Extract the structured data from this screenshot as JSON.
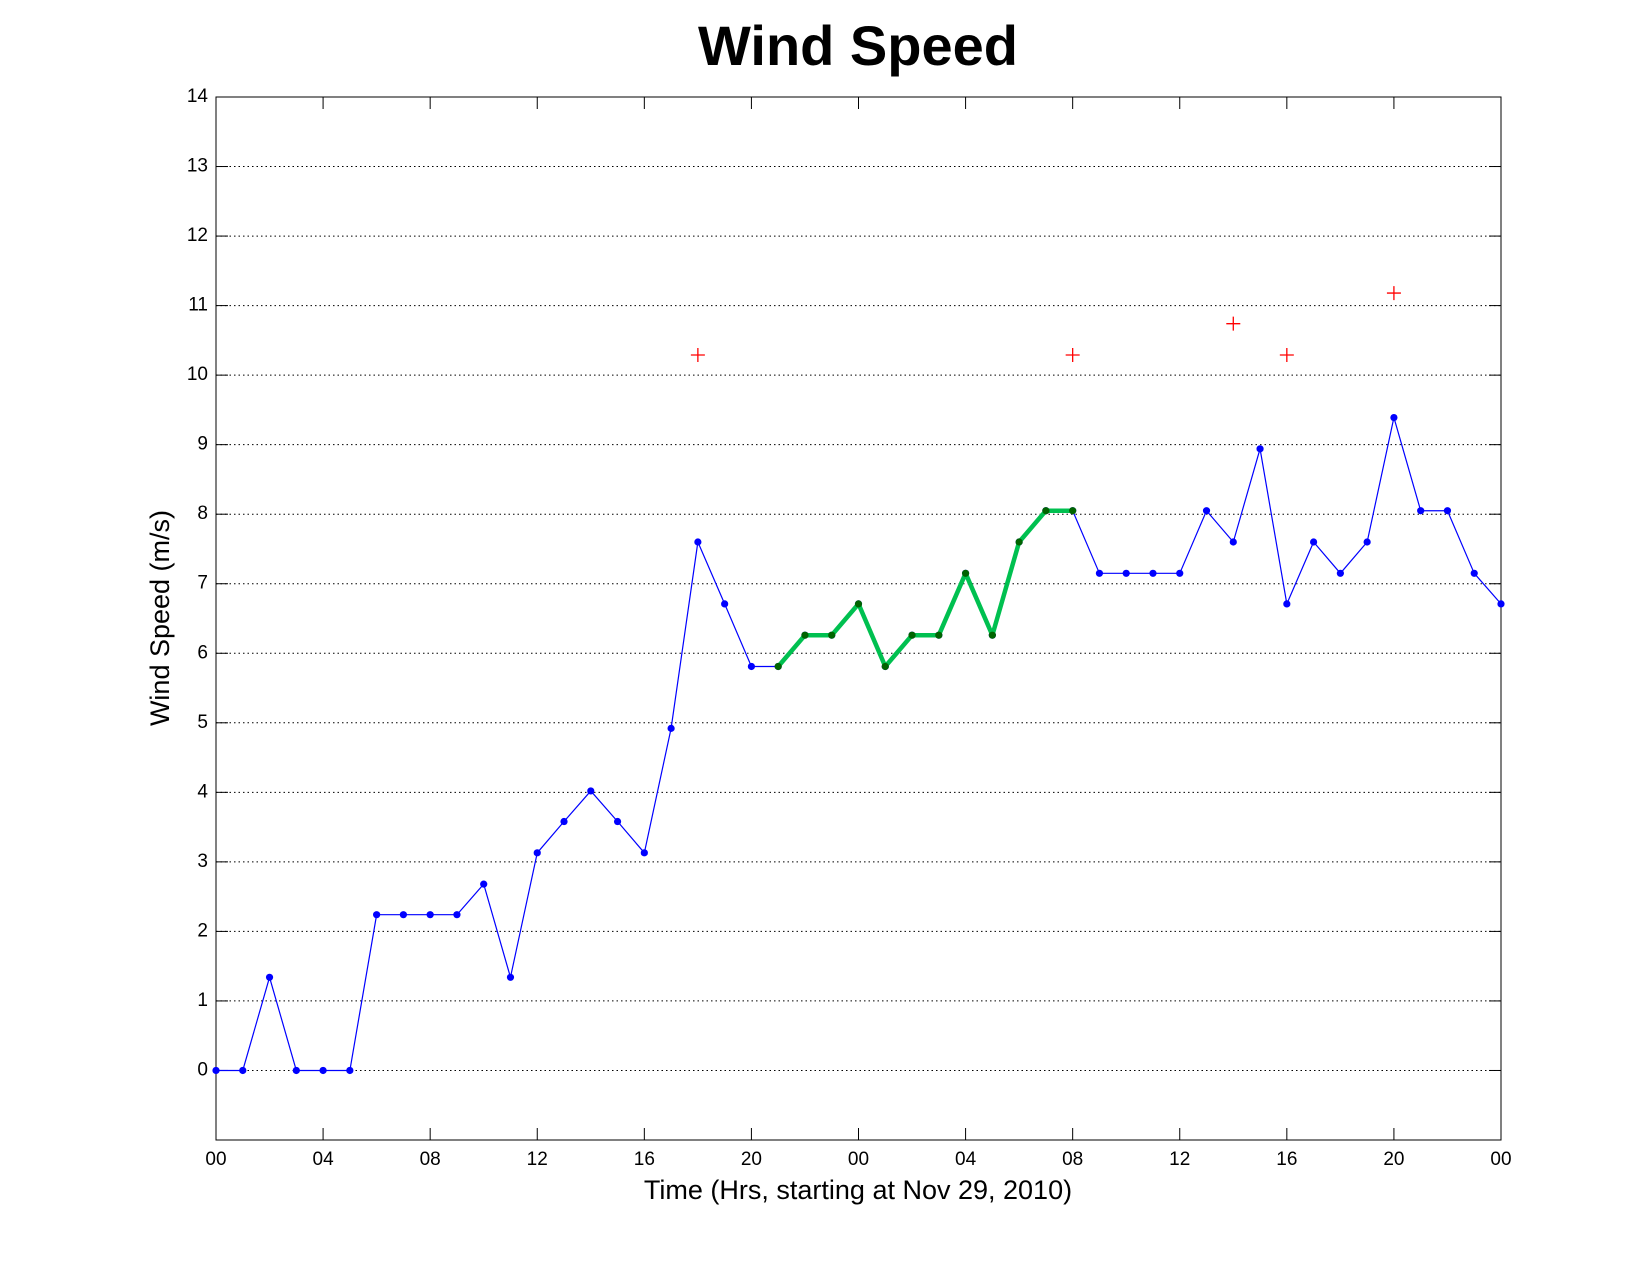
{
  "chart_data": {
    "type": "line",
    "title": "Wind Speed",
    "xlabel": "Time (Hrs, starting at Nov 29, 2010)",
    "ylabel": "Wind Speed (m/s)",
    "xlim": [
      0,
      48
    ],
    "ylim": [
      -1,
      14
    ],
    "xticks": [
      {
        "value": 0,
        "label": "00"
      },
      {
        "value": 4,
        "label": "04"
      },
      {
        "value": 8,
        "label": "08"
      },
      {
        "value": 12,
        "label": "12"
      },
      {
        "value": 16,
        "label": "16"
      },
      {
        "value": 20,
        "label": "20"
      },
      {
        "value": 24,
        "label": "00"
      },
      {
        "value": 28,
        "label": "04"
      },
      {
        "value": 32,
        "label": "08"
      },
      {
        "value": 36,
        "label": "12"
      },
      {
        "value": 40,
        "label": "16"
      },
      {
        "value": 44,
        "label": "20"
      },
      {
        "value": 48,
        "label": "00"
      }
    ],
    "yticks": [
      0,
      1,
      2,
      3,
      4,
      5,
      6,
      7,
      8,
      9,
      10,
      11,
      12,
      13,
      14
    ],
    "grid": "y",
    "series": [
      {
        "color": "#0000ff",
        "marker": "dot",
        "marker_color": "#0000ff",
        "line_width": 1.2,
        "x": [
          0,
          1,
          2,
          3,
          4,
          5,
          6,
          7,
          8,
          9,
          10,
          11,
          12,
          13,
          14,
          15,
          16,
          17,
          18,
          19,
          20,
          21,
          22,
          23,
          24,
          25,
          26,
          27,
          28,
          29,
          30,
          31,
          32,
          33,
          34,
          35,
          36,
          37,
          38,
          39,
          40,
          41,
          42,
          43,
          44,
          45,
          46,
          47,
          48
        ],
        "values": [
          0,
          0,
          1.34,
          0,
          0,
          0,
          2.24,
          2.24,
          2.24,
          2.24,
          2.68,
          1.34,
          3.13,
          3.58,
          4.02,
          3.58,
          3.13,
          4.92,
          7.6,
          6.71,
          5.81,
          5.81,
          6.26,
          6.26,
          6.71,
          5.81,
          6.26,
          6.26,
          7.15,
          6.26,
          7.6,
          8.05,
          8.05,
          7.15,
          7.15,
          7.15,
          7.15,
          8.05,
          7.6,
          8.94,
          6.71,
          7.6,
          7.15,
          7.6,
          9.39,
          8.05,
          8.05,
          7.15,
          6.71
        ]
      },
      {
        "color": "#00c050",
        "marker": "dot",
        "marker_color": "#006400",
        "line_width": 4.5,
        "x": [
          21,
          22,
          23,
          24,
          25,
          26,
          27,
          28,
          29,
          30,
          31,
          32
        ],
        "values": [
          5.81,
          6.26,
          6.26,
          6.71,
          5.81,
          6.26,
          6.26,
          7.15,
          6.26,
          7.6,
          8.05,
          8.05
        ]
      },
      {
        "color": "#ff0000",
        "marker": "plus",
        "marker_color": "#ff0000",
        "line_width": 0,
        "x": [
          18,
          32,
          38,
          40,
          44
        ],
        "values": [
          10.29,
          10.29,
          10.74,
          10.29,
          11.18
        ]
      }
    ]
  }
}
